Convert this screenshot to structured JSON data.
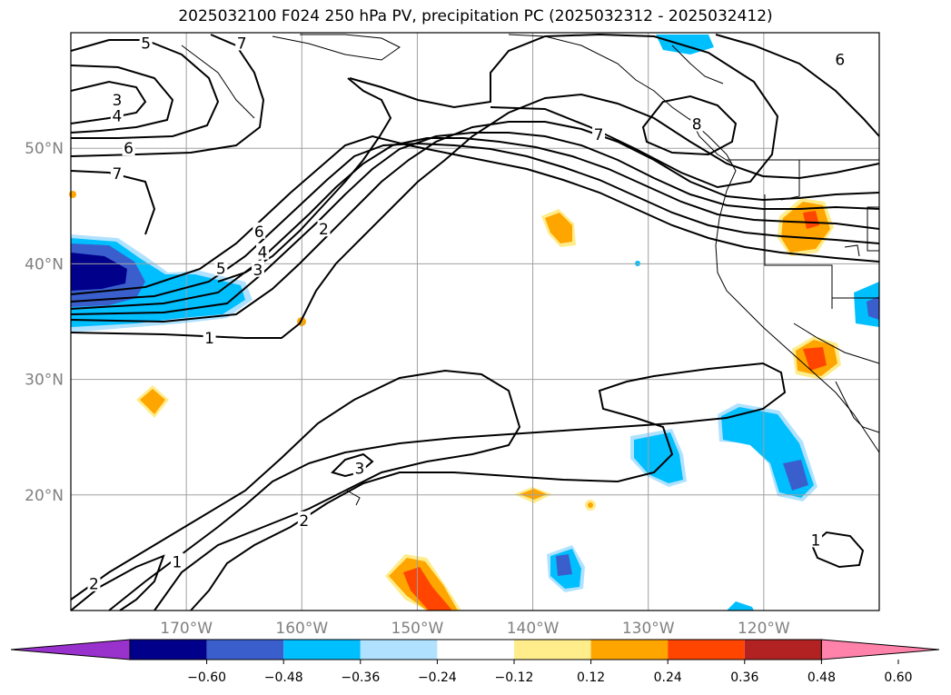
{
  "title": "2025032100 F024 250 hPa PV, precipitation PC (2025032312 - 2025032412)",
  "lat_labels": [
    {
      "text": "50°N",
      "lat": 50
    },
    {
      "text": "40°N",
      "lat": 40
    },
    {
      "text": "30°N",
      "lat": 30
    },
    {
      "text": "20°N",
      "lat": 20
    }
  ],
  "lon_labels": [
    {
      "text": "170°W",
      "lon": -170
    },
    {
      "text": "160°W",
      "lon": -160
    },
    {
      "text": "150°W",
      "lon": -150
    },
    {
      "text": "140°W",
      "lon": -140
    },
    {
      "text": "130°W",
      "lon": -130
    },
    {
      "text": "120°W",
      "lon": -120
    }
  ],
  "map_extent": {
    "lon_min": -180,
    "lon_max": -110,
    "lat_min": 10,
    "lat_max": 60
  },
  "colorbar": {
    "colors": [
      "#9932cc",
      "#00008b",
      "#3a5fcd",
      "#00bfff",
      "#b0e2ff",
      "#ffffff",
      "#ffec8b",
      "#ffa500",
      "#ff4500",
      "#b22222",
      "#ff82ab"
    ],
    "tick_labels": [
      "−0.60",
      "−0.48",
      "−0.36",
      "−0.24",
      "−0.12",
      "0.12",
      "0.24",
      "0.36",
      "0.48",
      "0.60"
    ]
  },
  "contour_labels": [
    {
      "text": "5",
      "lon": -173.5,
      "lat": 59.1
    },
    {
      "text": "7",
      "lon": -165.2,
      "lat": 59.1
    },
    {
      "text": "3",
      "lon": -176,
      "lat": 54.2
    },
    {
      "text": "4",
      "lon": -176,
      "lat": 52.8
    },
    {
      "text": "6",
      "lon": -175,
      "lat": 50.0
    },
    {
      "text": "7",
      "lon": -176,
      "lat": 47.8
    },
    {
      "text": "6",
      "lon": -163.7,
      "lat": 42.8
    },
    {
      "text": "4",
      "lon": -163.4,
      "lat": 41.0
    },
    {
      "text": "5",
      "lon": -167,
      "lat": 39.6
    },
    {
      "text": "3",
      "lon": -163.8,
      "lat": 39.5
    },
    {
      "text": "2",
      "lon": -158.1,
      "lat": 43.0
    },
    {
      "text": "1",
      "lon": -168,
      "lat": 33.6
    },
    {
      "text": "7",
      "lon": -134.3,
      "lat": 51.2
    },
    {
      "text": "8",
      "lon": -125.8,
      "lat": 52.1
    },
    {
      "text": "6",
      "lon": -113.4,
      "lat": 57.7
    },
    {
      "text": "3",
      "lon": -155.0,
      "lat": 22.3
    },
    {
      "text": "2",
      "lon": -159.8,
      "lat": 17.8
    },
    {
      "text": "1",
      "lon": -170.8,
      "lat": 14.2
    },
    {
      "text": "2",
      "lon": -178.0,
      "lat": 12.3
    },
    {
      "text": "1",
      "lon": -115.5,
      "lat": 16.1
    }
  ]
}
